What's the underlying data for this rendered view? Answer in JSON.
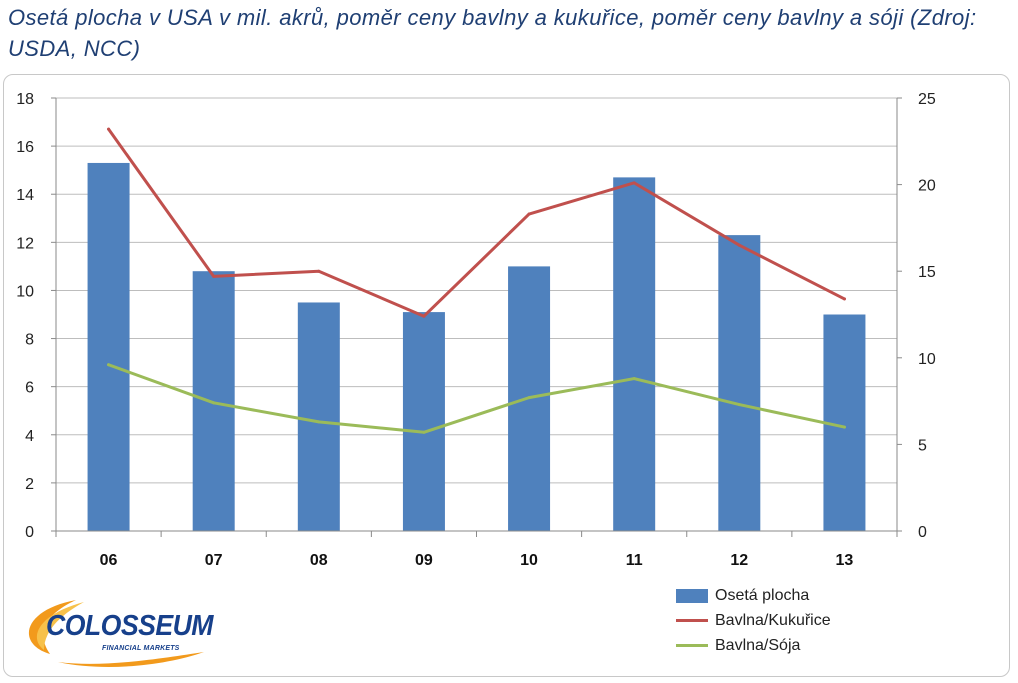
{
  "page": {
    "title": "Osetá plocha v USA v mil. akrů, poměr ceny bavlny a kukuřice, poměr ceny bavlny a sóji  (Zdroj: USDA, NCC)"
  },
  "chart_data": {
    "type": "bar",
    "title": "Osetá plocha v USA v mil. akrů, poměr ceny bavlny a kukuřice, poměr ceny bavlny a sóji  (Zdroj: USDA, NCC)",
    "categories": [
      "06",
      "07",
      "08",
      "09",
      "10",
      "11",
      "12",
      "13"
    ],
    "series": [
      {
        "name": "Osetá plocha",
        "type": "bar",
        "axis": "left",
        "color": "#4f81bd",
        "values": [
          15.3,
          10.8,
          9.5,
          9.1,
          11.0,
          14.7,
          12.3,
          9.0
        ]
      },
      {
        "name": "Bavlna/Kukuřice",
        "type": "line",
        "axis": "right",
        "color": "#c0504d",
        "values": [
          23.2,
          14.7,
          15.0,
          12.4,
          18.3,
          20.1,
          16.5,
          13.4
        ]
      },
      {
        "name": "Bavlna/Sója",
        "type": "line",
        "axis": "right",
        "color": "#9bbb59",
        "values": [
          9.6,
          7.4,
          6.3,
          5.7,
          7.7,
          8.8,
          7.3,
          6.0
        ]
      }
    ],
    "y_left": {
      "min": 0,
      "max": 18,
      "step": 2,
      "ticks": [
        "0",
        "2",
        "4",
        "6",
        "8",
        "10",
        "12",
        "14",
        "16",
        "18"
      ]
    },
    "y_right": {
      "min": 0,
      "max": 25,
      "step": 5,
      "ticks": [
        "0",
        "5",
        "10",
        "15",
        "20",
        "25"
      ]
    },
    "xlabel": "",
    "ylabel": "",
    "grid": true,
    "legend": "bottom-right"
  },
  "logo": {
    "word": "COLOSSEUM",
    "sub": "FINANCIAL MARKETS"
  }
}
